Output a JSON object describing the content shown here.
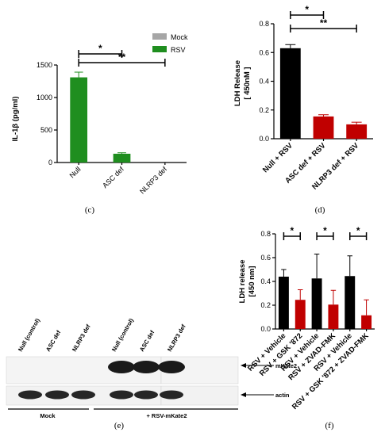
{
  "chart_data": [
    {
      "panel": "(c)",
      "type": "bar",
      "categories": [
        "Null",
        "ASC def",
        "NLRP3 def"
      ],
      "series": [
        {
          "name": "Mock",
          "values": [
            0,
            0,
            0
          ],
          "color": "#a6a6a6"
        },
        {
          "name": "RSV",
          "values": [
            1310,
            135,
            0
          ],
          "errors": [
            80,
            15,
            0
          ],
          "color": "#1f8e1f"
        }
      ],
      "ylabel": "IL-1β (pg/ml)",
      "ylim": [
        0,
        1500
      ],
      "yticks": [
        "0",
        "500",
        "1000",
        "1500"
      ],
      "legend": "top-right",
      "annotations": [
        {
          "from": "Null",
          "to": "ASC def",
          "text": "*"
        },
        {
          "from": "Null",
          "to": "NLRP3 def",
          "text": "**"
        }
      ]
    },
    {
      "panel": "(d)",
      "type": "bar",
      "categories": [
        "Null + RSV",
        "ASC def + RSV",
        "NLRP3 def + RSV"
      ],
      "values": [
        0.63,
        0.155,
        0.1
      ],
      "errors": [
        0.025,
        0.012,
        0.015
      ],
      "colors": [
        "#000000",
        "#c00000",
        "#c00000"
      ],
      "ylabel": "LDH Release",
      "ylabel2": "[ 450nM ]",
      "ylim": [
        0,
        0.8
      ],
      "yticks": [
        "0.0",
        "0.2",
        "0.4",
        "0.6",
        "0.8"
      ],
      "annotations": [
        {
          "from": "Null + RSV",
          "to": "ASC def + RSV",
          "text": "*"
        },
        {
          "from": "Null + RSV",
          "to": "NLRP3 def + RSV",
          "text": "**"
        }
      ]
    },
    {
      "panel": "(f)",
      "type": "bar",
      "categories": [
        "RSV + Vehicle",
        "RSV + GSK '872",
        "RSV + Vehicle",
        "RSV + ZVAD-FMK",
        "RSV + Vehicle",
        "RSV + GSK '872 + ZVAD-FMK"
      ],
      "values": [
        0.44,
        0.245,
        0.425,
        0.205,
        0.445,
        0.115
      ],
      "errors": [
        0.06,
        0.085,
        0.205,
        0.12,
        0.17,
        0.13
      ],
      "colors": [
        "#000000",
        "#c00000",
        "#000000",
        "#c00000",
        "#000000",
        "#c00000"
      ],
      "ylabel": "LDH release",
      "ylabel2": "[450 nm]",
      "ylim": [
        0,
        0.8
      ],
      "yticks": [
        "0.0",
        "0.2",
        "0.4",
        "0.6",
        "0.8"
      ],
      "annotations": [
        {
          "from": 0,
          "to": 1,
          "text": "*"
        },
        {
          "from": 2,
          "to": 3,
          "text": "*"
        },
        {
          "from": 4,
          "to": 5,
          "text": "*"
        }
      ]
    }
  ],
  "blot": {
    "panel": "(e)",
    "lanes": [
      "Null (control)",
      "ASC def",
      "NLRP3 def",
      "Null (control)",
      "ASC def",
      "NLRP3 def"
    ],
    "mkate2_bands": [
      0,
      0,
      0,
      1,
      1,
      1
    ],
    "actin_bands": [
      1,
      1,
      1,
      1,
      1,
      1
    ],
    "bands": [
      "mKate2",
      "actin"
    ],
    "groups": [
      "Mock",
      "+ RSV-mKate2"
    ]
  }
}
